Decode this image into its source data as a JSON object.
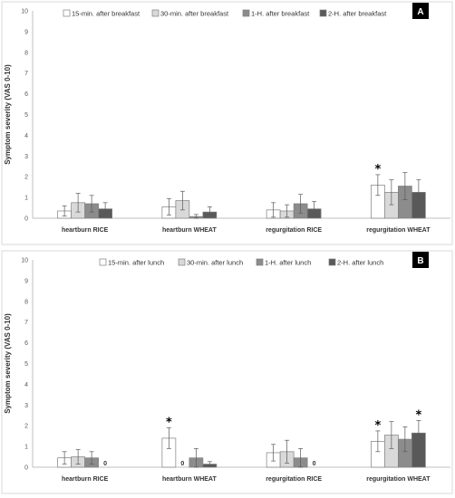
{
  "chart_data": [
    {
      "type": "bar",
      "panel_label": "A",
      "ylabel": "Symptom severity (VAS 0-10)",
      "ylim": [
        0,
        10
      ],
      "yticks": [
        "0",
        "1",
        "2",
        "3",
        "4",
        "5",
        "6",
        "7",
        "8",
        "9",
        "10"
      ],
      "grid": false,
      "legend_position": "top",
      "categories": [
        "heartburn RICE",
        "heartburn WHEAT",
        "regurgitation RICE",
        "regurgitation WHEAT"
      ],
      "series": [
        {
          "name": "15-min. after breakfast",
          "color": "#ffffff",
          "values": [
            0.35,
            0.55,
            0.4,
            1.6
          ],
          "errors": [
            0.25,
            0.4,
            0.35,
            0.5
          ]
        },
        {
          "name": "30-min. after breakfast",
          "color": "#d9d9d9",
          "values": [
            0.75,
            0.85,
            0.35,
            1.25
          ],
          "errors": [
            0.45,
            0.45,
            0.3,
            0.6
          ]
        },
        {
          "name": "1-H. after breakfast",
          "color": "#8c8c8c",
          "values": [
            0.7,
            0.08,
            0.7,
            1.55
          ],
          "errors": [
            0.4,
            0.1,
            0.45,
            0.65
          ]
        },
        {
          "name": "2-H. after breakfast",
          "color": "#595959",
          "values": [
            0.45,
            0.3,
            0.45,
            1.25
          ],
          "errors": [
            0.3,
            0.25,
            0.35,
            0.6
          ]
        }
      ],
      "annotations": [
        {
          "category": 3,
          "series": 0,
          "text": "*"
        }
      ],
      "zero_labels": []
    },
    {
      "type": "bar",
      "panel_label": "B",
      "ylabel": "Symptom severity (VAS 0-10)",
      "ylim": [
        0,
        10
      ],
      "yticks": [
        "0",
        "1",
        "2",
        "3",
        "4",
        "5",
        "6",
        "7",
        "8",
        "9",
        "10"
      ],
      "grid": false,
      "legend_position": "top",
      "categories": [
        "heartburn RICE",
        "heartburn WHEAT",
        "regurgitation RICE",
        "regurgitation WHEAT"
      ],
      "series": [
        {
          "name": "15-min. after lunch",
          "color": "#ffffff",
          "values": [
            0.45,
            1.4,
            0.7,
            1.25
          ],
          "errors": [
            0.3,
            0.5,
            0.4,
            0.5
          ]
        },
        {
          "name": "30-min. after lunch",
          "color": "#d9d9d9",
          "values": [
            0.5,
            0,
            0.75,
            1.55
          ],
          "errors": [
            0.35,
            0,
            0.55,
            0.65
          ]
        },
        {
          "name": "1-H. after lunch",
          "color": "#8c8c8c",
          "values": [
            0.45,
            0.45,
            0.45,
            1.35
          ],
          "errors": [
            0.3,
            0.45,
            0.45,
            0.6
          ]
        },
        {
          "name": "2-H. after lunch",
          "color": "#595959",
          "values": [
            0,
            0.15,
            0,
            1.65
          ],
          "errors": [
            0,
            0.12,
            0,
            0.6
          ]
        }
      ],
      "annotations": [
        {
          "category": 1,
          "series": 0,
          "text": "*"
        },
        {
          "category": 3,
          "series": 0,
          "text": "*"
        },
        {
          "category": 3,
          "series": 3,
          "text": "*"
        }
      ],
      "zero_labels": [
        {
          "category": 0,
          "series": 3,
          "text": "0"
        },
        {
          "category": 1,
          "series": 1,
          "text": "0"
        },
        {
          "category": 2,
          "series": 3,
          "text": "0"
        }
      ]
    }
  ]
}
